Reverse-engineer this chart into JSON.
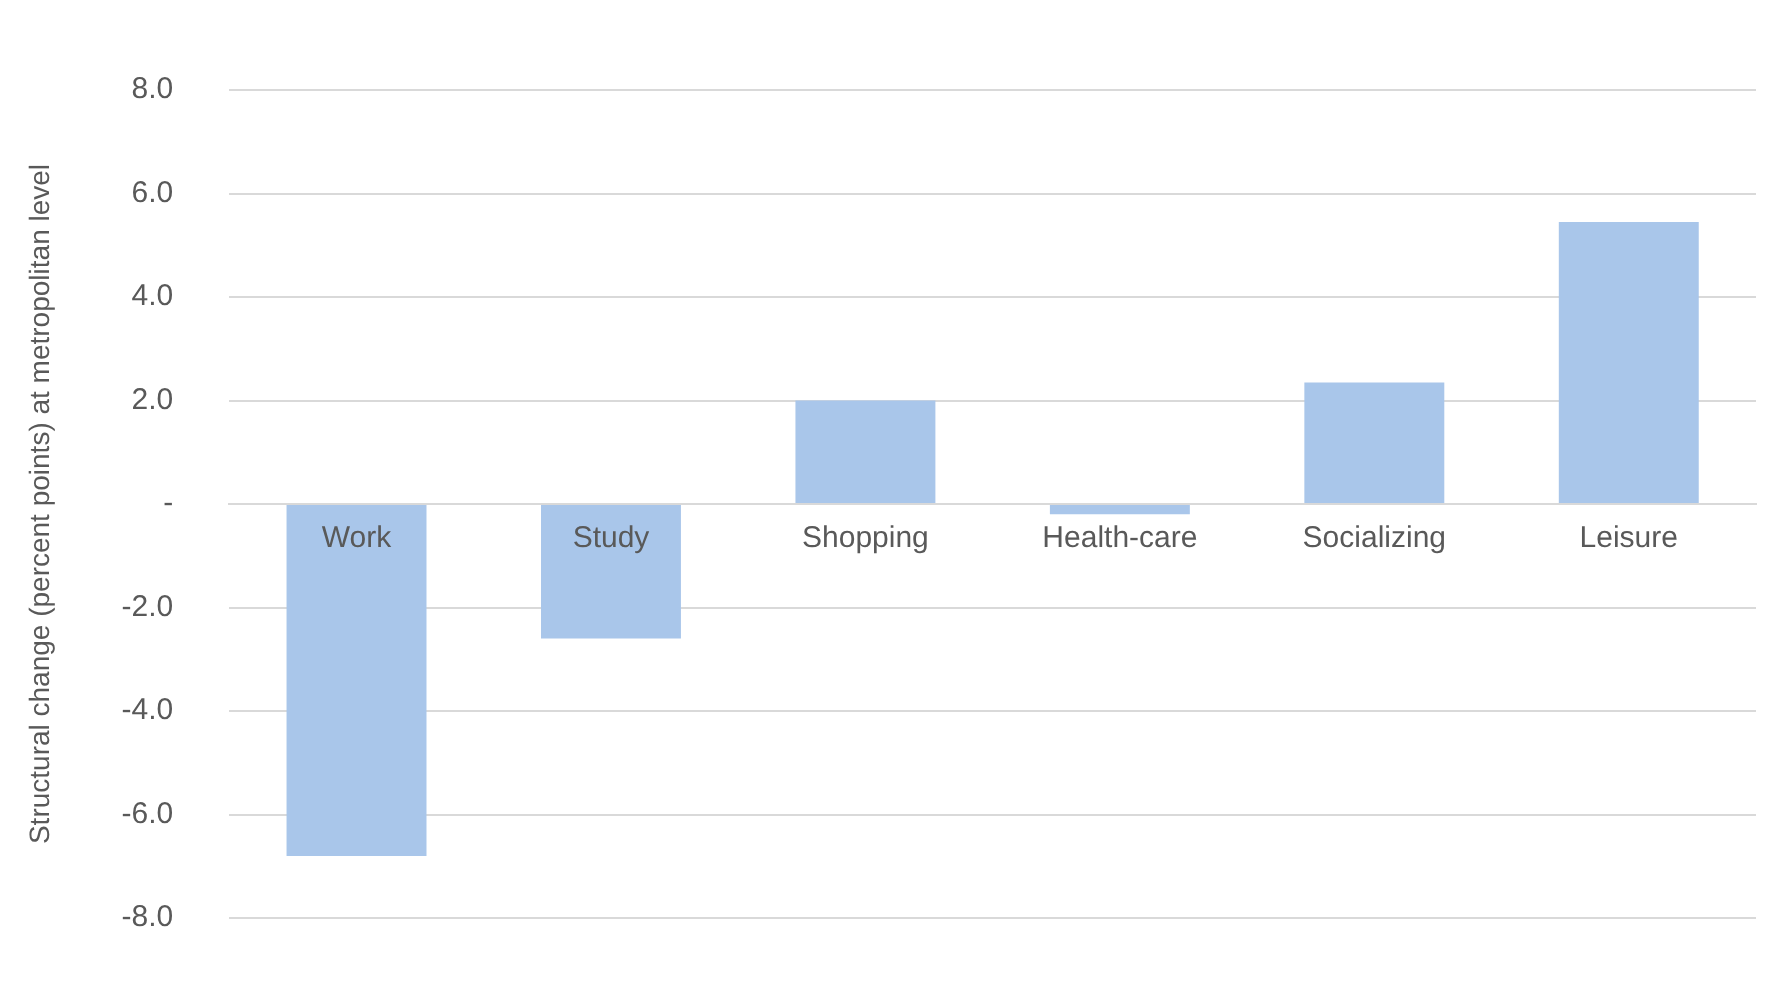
{
  "chart_data": {
    "type": "bar",
    "ylabel": "Structural change (percent points) at metropolitan level",
    "categories": [
      "Work",
      "Study",
      "Shopping",
      "Health-care",
      "Socializing",
      "Leisure"
    ],
    "values": [
      -6.8,
      -2.6,
      2.0,
      -0.2,
      2.35,
      5.45
    ],
    "color": "#a9c6ea",
    "ylim": [
      -8,
      8
    ],
    "yticks": [
      {
        "value": -8,
        "label": "-8.0"
      },
      {
        "value": -6,
        "label": "-6.0"
      },
      {
        "value": -4,
        "label": "-4.0"
      },
      {
        "value": -2,
        "label": "-2.0"
      },
      {
        "value": 0,
        "label": "-"
      },
      {
        "value": 2,
        "label": "2.0"
      },
      {
        "value": 4,
        "label": "4.0"
      },
      {
        "value": 6,
        "label": "6.0"
      },
      {
        "value": 8,
        "label": "8.0"
      }
    ],
    "grid": "y",
    "legend": false
  }
}
